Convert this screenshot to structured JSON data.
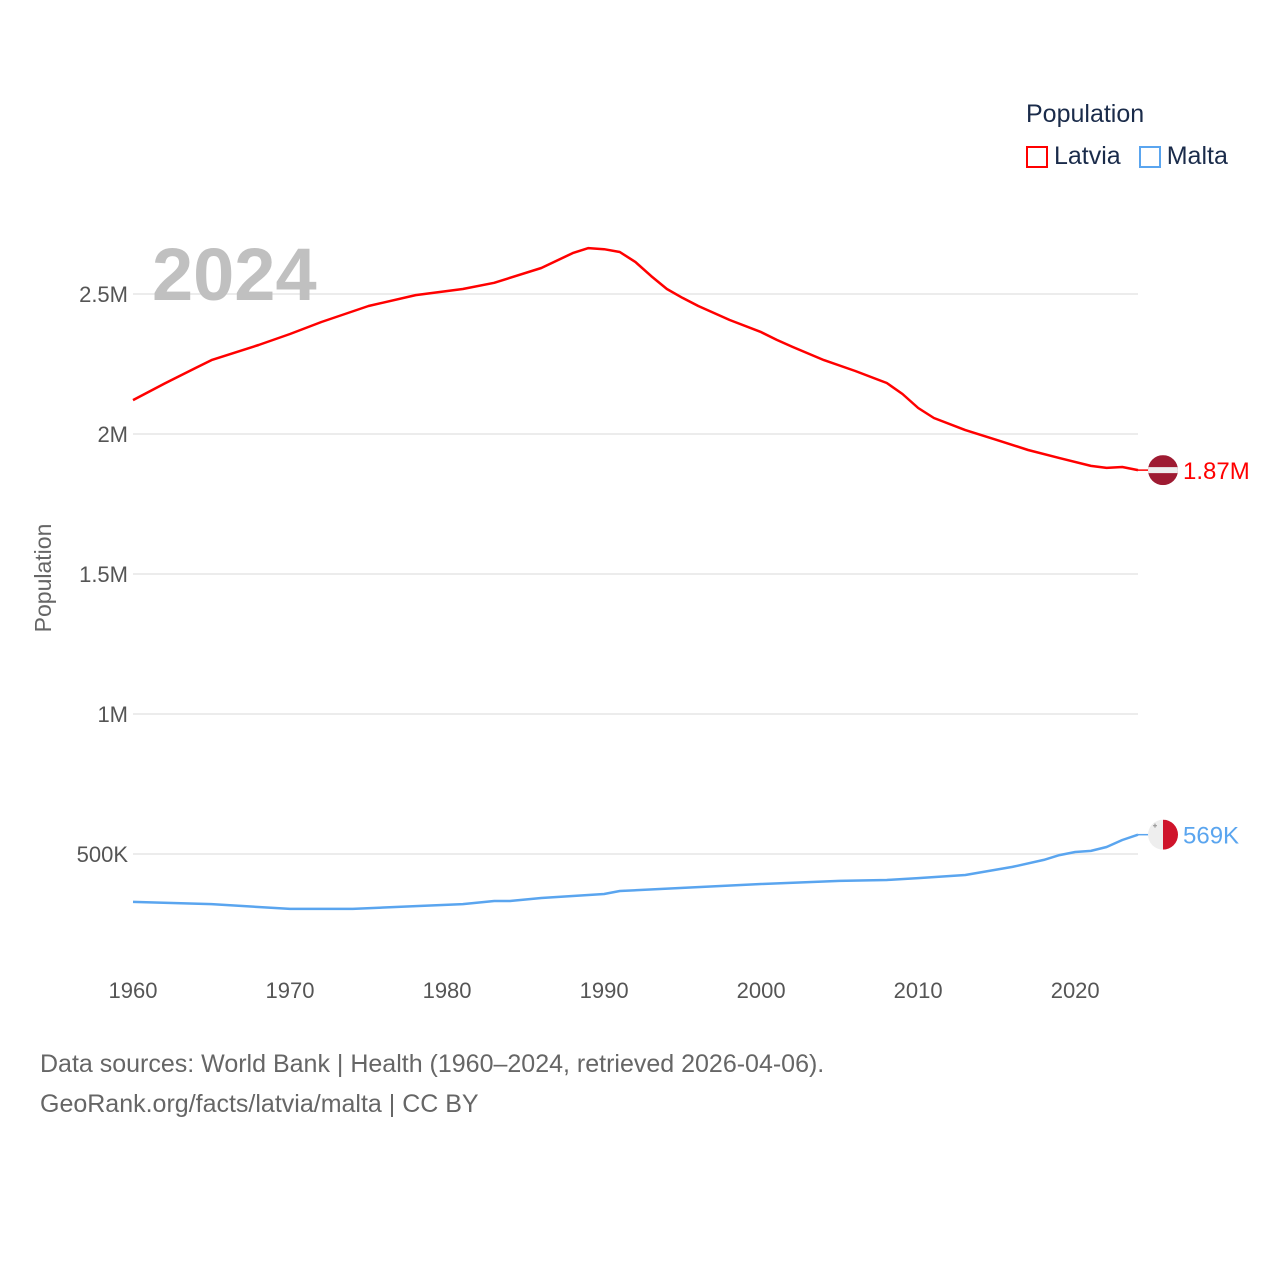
{
  "chart_data": {
    "type": "line",
    "title": "Population",
    "watermark_year": "2024",
    "ylabel": "Population",
    "xlabel": "",
    "xlim": [
      1960,
      2024
    ],
    "ylim": [
      0,
      2750000
    ],
    "x_ticks": [
      "1960",
      "1970",
      "1980",
      "1990",
      "2000",
      "2010",
      "2020"
    ],
    "y_ticks": [
      {
        "value": 500000,
        "label": "500K"
      },
      {
        "value": 1000000,
        "label": "1M"
      },
      {
        "value": 1500000,
        "label": "1.5M"
      },
      {
        "value": 2000000,
        "label": "2M"
      },
      {
        "value": 2500000,
        "label": "2.5M"
      }
    ],
    "grid": true,
    "legend_placement": "top-right",
    "legend_title": "Population",
    "series": [
      {
        "name": "Latvia",
        "color": "#ff0000",
        "end_label": "1.87M",
        "flag": "latvia-flag",
        "x": [
          1960,
          1962,
          1964,
          1965,
          1968,
          1970,
          1972,
          1975,
          1978,
          1981,
          1983,
          1986,
          1988,
          1989,
          1990,
          1991,
          1992,
          1993,
          1994,
          1995,
          1996,
          1998,
          2000,
          2001,
          2002,
          2004,
          2006,
          2008,
          2009,
          2010,
          2011,
          2013,
          2015,
          2017,
          2019,
          2021,
          2022,
          2023,
          2024
        ],
        "values": [
          2121000,
          2180000,
          2236000,
          2264000,
          2318000,
          2357000,
          2400000,
          2457000,
          2496000,
          2518000,
          2540000,
          2593000,
          2646000,
          2664000,
          2660000,
          2650000,
          2614000,
          2564000,
          2518000,
          2486000,
          2457000,
          2407000,
          2364000,
          2336000,
          2311000,
          2264000,
          2225000,
          2182000,
          2143000,
          2093000,
          2057000,
          2014000,
          1979000,
          1943000,
          1914000,
          1886000,
          1879000,
          1882000,
          1871000
        ]
      },
      {
        "name": "Malta",
        "color": "#5aa5ef",
        "end_label": "569K",
        "flag": "malta-flag",
        "x": [
          1960,
          1965,
          1970,
          1974,
          1978,
          1981,
          1983,
          1984,
          1986,
          1990,
          1991,
          1995,
          2000,
          2005,
          2008,
          2010,
          2013,
          2016,
          2018,
          2019,
          2020,
          2021,
          2022,
          2023,
          2024
        ],
        "values": [
          329000,
          321000,
          304000,
          304000,
          314000,
          321000,
          332000,
          332000,
          343000,
          357000,
          368000,
          379000,
          393000,
          404000,
          407000,
          414000,
          425000,
          454000,
          479000,
          496000,
          507000,
          511000,
          525000,
          550000,
          569000
        ]
      }
    ]
  },
  "footer": {
    "line1": "Data sources: World Bank | Health (1960–2024, retrieved 2026-04-06).",
    "line2": "GeoRank.org/facts/latvia/malta | CC BY"
  }
}
